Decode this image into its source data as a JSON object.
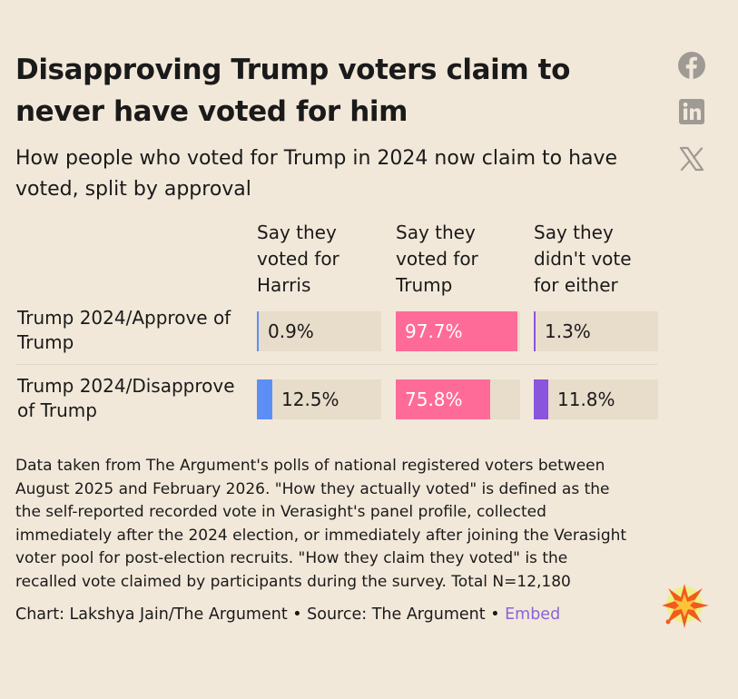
{
  "title": "Disapproving Trump voters claim to never have voted for him",
  "subtitle": "How people who voted for Trump in 2024 now claim to have voted, split by approval",
  "share": {
    "facebook": "facebook-icon",
    "linkedin": "linkedin-icon",
    "x": "x-icon"
  },
  "chart_data": {
    "type": "table",
    "columns": [
      {
        "name": "Say they voted for Harris",
        "lines": [
          "Say they",
          "voted for",
          "Harris"
        ],
        "color": "#5b8ff6"
      },
      {
        "name": "Say they voted for Trump",
        "lines": [
          "Say they",
          "voted for",
          "Trump"
        ],
        "color": "#ff6b99"
      },
      {
        "name": "Say they didn't vote for either",
        "lines": [
          "Say they",
          "didn't vote",
          "for either"
        ],
        "color": "#8a54dc"
      }
    ],
    "rows": [
      {
        "label": "Trump 2024/Approve of Trump",
        "label_lines": [
          "Trump 2024/Approve of",
          "Trump"
        ],
        "values": [
          0.9,
          97.7,
          1.3
        ],
        "labels": [
          "0.9%",
          "97.7%",
          "1.3%"
        ]
      },
      {
        "label": "Trump 2024/Disapprove of Trump",
        "label_lines": [
          "Trump 2024/Disapprove",
          "of Trump"
        ],
        "values": [
          12.5,
          75.8,
          11.8
        ],
        "labels": [
          "12.5%",
          "75.8%",
          "11.8%"
        ]
      }
    ],
    "value_max": 100,
    "unit": "%"
  },
  "notes": [
    "Data taken from The Argument's polls of national registered voters between",
    "August 2025 and February 2026. \"How they actually voted\" is defined as the",
    "the self-reported recorded vote in Verasight's panel profile, collected",
    "immediately after the 2024 election, or immediately after joining the Verasight",
    "voter pool for post-election recruits. \"How they claim they voted\" is the",
    "recalled vote claimed by participants during the survey. Total N=12,180"
  ],
  "credit": {
    "chart": "Chart: Lakshya Jain/The Argument",
    "sep1": " • ",
    "source": "Source: The Argument",
    "sep2": " • ",
    "embed": "Embed"
  },
  "colors": {
    "background": "#f2e8d9",
    "cell": "#e8dccb",
    "embed": "#8a64d6"
  }
}
